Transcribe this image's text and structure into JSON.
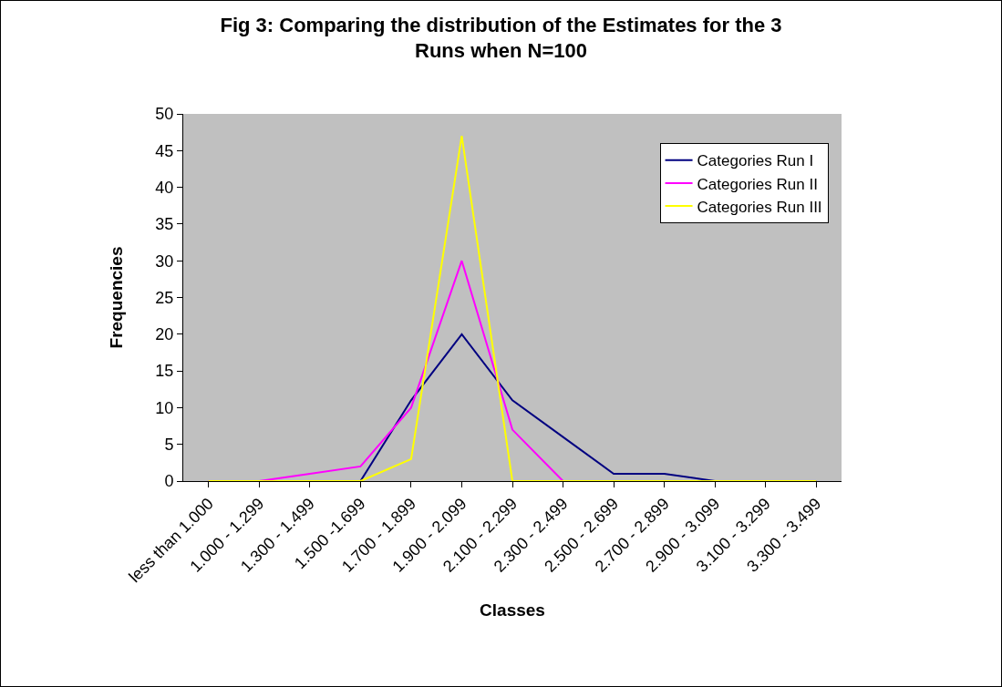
{
  "chart_data": {
    "type": "line",
    "title": "Fig 3: Comparing the distribution of the Estimates for the 3 Runs when N=100",
    "xlabel": "Classes",
    "ylabel": "Frequencies",
    "categories": [
      "less than 1.000",
      "1.000 - 1.299",
      "1.300 - 1.499",
      "1.500 -1.699",
      "1.700 - 1.899",
      "1.900 - 2.099",
      "2.100 - 2.299",
      "2.300 - 2.499",
      "2.500 - 2.699",
      "2.700 - 2.899",
      "2.900 - 3.099",
      "3.100 - 3.299",
      "3.300 - 3.499"
    ],
    "series": [
      {
        "name": "Categories Run I",
        "color": "#000080",
        "values": [
          null,
          null,
          0,
          0,
          11,
          20,
          11,
          6,
          1,
          1,
          0,
          0,
          0
        ]
      },
      {
        "name": "Categories Run II",
        "color": "#ff00ff",
        "values": [
          0,
          0,
          1,
          2,
          10,
          30,
          7,
          0,
          0,
          null,
          null,
          null,
          null
        ]
      },
      {
        "name": "Categories Run III",
        "color": "#ffff00",
        "values": [
          0,
          0,
          0,
          0,
          3,
          47,
          0,
          0,
          0,
          0,
          0,
          0,
          0
        ]
      }
    ],
    "ylim": [
      0,
      50
    ],
    "yticks": [
      0,
      5,
      10,
      15,
      20,
      25,
      30,
      35,
      40,
      45,
      50
    ],
    "grid": false,
    "legend": "top right",
    "marker": "none",
    "line_style": "solid"
  }
}
